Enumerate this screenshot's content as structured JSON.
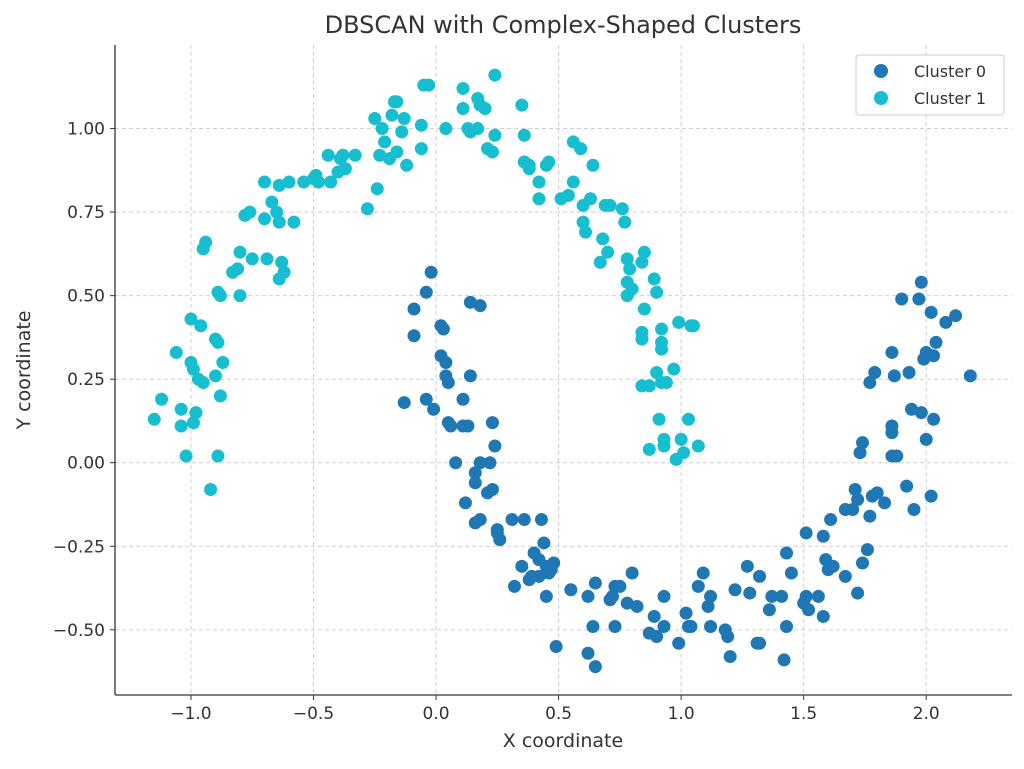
{
  "chart_data": {
    "type": "scatter",
    "title": "DBSCAN with Complex-Shaped Clusters",
    "xlabel": "X coordinate",
    "ylabel": "Y coordinate",
    "xlim": [
      -1.31,
      2.35
    ],
    "ylim": [
      -0.695,
      1.25
    ],
    "xticks": [
      -1.0,
      -0.5,
      0.0,
      0.5,
      1.0,
      1.5,
      2.0
    ],
    "xtick_labels": [
      "−1.0",
      "−0.5",
      "0.0",
      "0.5",
      "1.0",
      "1.5",
      "2.0"
    ],
    "yticks": [
      -0.5,
      -0.25,
      0.0,
      0.25,
      0.5,
      0.75,
      1.0
    ],
    "ytick_labels": [
      "−0.50",
      "−0.25",
      "0.00",
      "0.25",
      "0.50",
      "0.75",
      "1.00"
    ],
    "grid": true,
    "legend_position": "top-right",
    "series": [
      {
        "name": "Cluster 0",
        "color": "#1f77b4",
        "points": [
          [
            -0.13,
            0.18
          ],
          [
            -0.09,
            0.46
          ],
          [
            -0.09,
            0.38
          ],
          [
            -0.04,
            0.19
          ],
          [
            -0.04,
            0.51
          ],
          [
            -0.02,
            0.57
          ],
          [
            -0.01,
            0.16
          ],
          [
            0.02,
            0.41
          ],
          [
            0.02,
            0.32
          ],
          [
            0.03,
            0.4
          ],
          [
            0.04,
            0.26
          ],
          [
            0.04,
            0.3
          ],
          [
            0.05,
            0.24
          ],
          [
            0.05,
            0.12
          ],
          [
            0.06,
            0.11
          ],
          [
            0.08,
            0.0
          ],
          [
            0.11,
            0.11
          ],
          [
            0.11,
            0.19
          ],
          [
            0.13,
            0.11
          ],
          [
            0.12,
            -0.12
          ],
          [
            0.14,
            0.48
          ],
          [
            0.14,
            0.26
          ],
          [
            0.16,
            -0.03
          ],
          [
            0.16,
            -0.18
          ],
          [
            0.16,
            -0.06
          ],
          [
            0.18,
            -0.17
          ],
          [
            0.18,
            0.47
          ],
          [
            0.18,
            0.0
          ],
          [
            0.21,
            -0.09
          ],
          [
            0.22,
            0.0
          ],
          [
            0.23,
            0.12
          ],
          [
            0.23,
            -0.08
          ],
          [
            0.24,
            0.05
          ],
          [
            0.25,
            -0.2
          ],
          [
            0.25,
            -0.21
          ],
          [
            0.26,
            -0.23
          ],
          [
            0.31,
            -0.17
          ],
          [
            0.32,
            -0.37
          ],
          [
            0.35,
            -0.31
          ],
          [
            0.36,
            -0.17
          ],
          [
            0.38,
            -0.35
          ],
          [
            0.39,
            -0.34
          ],
          [
            0.4,
            -0.27
          ],
          [
            0.42,
            -0.34
          ],
          [
            0.42,
            -0.29
          ],
          [
            0.43,
            -0.17
          ],
          [
            0.44,
            -0.24
          ],
          [
            0.45,
            -0.31
          ],
          [
            0.45,
            -0.4
          ],
          [
            0.46,
            -0.33
          ],
          [
            0.47,
            -0.32
          ],
          [
            0.48,
            -0.3
          ],
          [
            0.49,
            -0.55
          ],
          [
            0.55,
            -0.38
          ],
          [
            0.62,
            -0.4
          ],
          [
            0.62,
            -0.57
          ],
          [
            0.64,
            -0.49
          ],
          [
            0.65,
            -0.36
          ],
          [
            0.65,
            -0.61
          ],
          [
            0.71,
            -0.41
          ],
          [
            0.72,
            -0.4
          ],
          [
            0.73,
            -0.37
          ],
          [
            0.73,
            -0.49
          ],
          [
            0.75,
            -0.37
          ],
          [
            0.78,
            -0.42
          ],
          [
            0.8,
            -0.33
          ],
          [
            0.82,
            -0.43
          ],
          [
            0.87,
            -0.51
          ],
          [
            0.89,
            -0.46
          ],
          [
            0.9,
            -0.52
          ],
          [
            0.93,
            -0.49
          ],
          [
            0.93,
            -0.4
          ],
          [
            0.99,
            -0.54
          ],
          [
            1.02,
            -0.45
          ],
          [
            1.03,
            -0.49
          ],
          [
            1.04,
            -0.49
          ],
          [
            1.07,
            -0.37
          ],
          [
            1.09,
            -0.33
          ],
          [
            1.11,
            -0.43
          ],
          [
            1.12,
            -0.49
          ],
          [
            1.12,
            -0.4
          ],
          [
            1.18,
            -0.5
          ],
          [
            1.19,
            -0.52
          ],
          [
            1.2,
            -0.58
          ],
          [
            1.22,
            -0.38
          ],
          [
            1.27,
            -0.31
          ],
          [
            1.28,
            -0.39
          ],
          [
            1.32,
            -0.34
          ],
          [
            1.31,
            -0.54
          ],
          [
            1.32,
            -0.54
          ],
          [
            1.36,
            -0.44
          ],
          [
            1.37,
            -0.4
          ],
          [
            1.41,
            -0.4
          ],
          [
            1.42,
            -0.59
          ],
          [
            1.43,
            -0.49
          ],
          [
            1.43,
            -0.27
          ],
          [
            1.45,
            -0.33
          ],
          [
            1.5,
            -0.42
          ],
          [
            1.51,
            -0.21
          ],
          [
            1.51,
            -0.4
          ],
          [
            1.52,
            -0.44
          ],
          [
            1.56,
            -0.4
          ],
          [
            1.58,
            -0.22
          ],
          [
            1.58,
            -0.46
          ],
          [
            1.59,
            -0.29
          ],
          [
            1.6,
            -0.32
          ],
          [
            1.61,
            -0.17
          ],
          [
            1.62,
            -0.31
          ],
          [
            1.67,
            -0.34
          ],
          [
            1.67,
            -0.14
          ],
          [
            1.7,
            -0.14
          ],
          [
            1.71,
            -0.08
          ],
          [
            1.72,
            -0.11
          ],
          [
            1.72,
            -0.39
          ],
          [
            1.73,
            0.03
          ],
          [
            1.74,
            0.06
          ],
          [
            1.74,
            -0.3
          ],
          [
            1.76,
            -0.26
          ],
          [
            1.77,
            0.24
          ],
          [
            1.77,
            -0.16
          ],
          [
            1.78,
            -0.1
          ],
          [
            1.79,
            0.27
          ],
          [
            1.8,
            -0.09
          ],
          [
            1.83,
            -0.12
          ],
          [
            1.86,
            0.11
          ],
          [
            1.86,
            0.02
          ],
          [
            1.86,
            0.09
          ],
          [
            1.86,
            0.33
          ],
          [
            1.87,
            0.26
          ],
          [
            1.88,
            0.02
          ],
          [
            1.9,
            0.49
          ],
          [
            1.92,
            -0.07
          ],
          [
            1.93,
            0.27
          ],
          [
            1.94,
            0.16
          ],
          [
            1.95,
            -0.14
          ],
          [
            1.97,
            0.49
          ],
          [
            1.98,
            0.54
          ],
          [
            1.98,
            0.15
          ],
          [
            1.99,
            0.31
          ],
          [
            2.0,
            0.33
          ],
          [
            2.0,
            0.07
          ],
          [
            2.02,
            0.45
          ],
          [
            2.02,
            -0.1
          ],
          [
            2.03,
            0.13
          ],
          [
            2.03,
            0.32
          ],
          [
            2.04,
            0.36
          ],
          [
            2.08,
            0.42
          ],
          [
            2.12,
            0.44
          ],
          [
            2.18,
            0.26
          ]
        ]
      },
      {
        "name": "Cluster 1",
        "color": "#17becf",
        "points": [
          [
            -1.15,
            0.13
          ],
          [
            -1.12,
            0.19
          ],
          [
            -1.06,
            0.33
          ],
          [
            -1.04,
            0.16
          ],
          [
            -1.04,
            0.11
          ],
          [
            -1.02,
            0.02
          ],
          [
            -1.0,
            0.43
          ],
          [
            -1.0,
            0.3
          ],
          [
            -0.99,
            0.28
          ],
          [
            -0.99,
            0.12
          ],
          [
            -0.98,
            0.15
          ],
          [
            -0.97,
            0.25
          ],
          [
            -0.95,
            0.24
          ],
          [
            -0.96,
            0.41
          ],
          [
            -0.95,
            0.64
          ],
          [
            -0.94,
            0.66
          ],
          [
            -0.92,
            -0.08
          ],
          [
            -0.9,
            0.26
          ],
          [
            -0.9,
            0.37
          ],
          [
            -0.89,
            0.36
          ],
          [
            -0.89,
            0.02
          ],
          [
            -0.89,
            0.51
          ],
          [
            -0.88,
            0.5
          ],
          [
            -0.88,
            0.2
          ],
          [
            -0.87,
            0.3
          ],
          [
            -0.83,
            0.57
          ],
          [
            -0.81,
            0.58
          ],
          [
            -0.8,
            0.5
          ],
          [
            -0.8,
            0.63
          ],
          [
            -0.78,
            0.74
          ],
          [
            -0.76,
            0.75
          ],
          [
            -0.75,
            0.61
          ],
          [
            -0.7,
            0.84
          ],
          [
            -0.7,
            0.73
          ],
          [
            -0.69,
            0.61
          ],
          [
            -0.67,
            0.78
          ],
          [
            -0.65,
            0.75
          ],
          [
            -0.64,
            0.72
          ],
          [
            -0.64,
            0.83
          ],
          [
            -0.64,
            0.55
          ],
          [
            -0.63,
            0.6
          ],
          [
            -0.62,
            0.57
          ],
          [
            -0.6,
            0.84
          ],
          [
            -0.58,
            0.72
          ],
          [
            -0.54,
            0.84
          ],
          [
            -0.5,
            0.85
          ],
          [
            -0.49,
            0.86
          ],
          [
            -0.48,
            0.84
          ],
          [
            -0.44,
            0.92
          ],
          [
            -0.43,
            0.84
          ],
          [
            -0.4,
            0.87
          ],
          [
            -0.39,
            0.91
          ],
          [
            -0.38,
            0.92
          ],
          [
            -0.37,
            0.88
          ],
          [
            -0.33,
            0.92
          ],
          [
            -0.28,
            0.76
          ],
          [
            -0.24,
            0.82
          ],
          [
            -0.25,
            1.03
          ],
          [
            -0.23,
            0.92
          ],
          [
            -0.22,
            1.0
          ],
          [
            -0.21,
            0.96
          ],
          [
            -0.19,
            0.91
          ],
          [
            -0.18,
            1.04
          ],
          [
            -0.17,
            1.08
          ],
          [
            -0.16,
            1.08
          ],
          [
            -0.16,
            0.93
          ],
          [
            -0.14,
            0.99
          ],
          [
            -0.13,
            1.03
          ],
          [
            -0.12,
            0.89
          ],
          [
            -0.06,
            1.01
          ],
          [
            -0.06,
            0.94
          ],
          [
            -0.05,
            1.13
          ],
          [
            -0.03,
            1.13
          ],
          [
            0.04,
            1.0
          ],
          [
            0.11,
            1.12
          ],
          [
            0.11,
            1.06
          ],
          [
            0.13,
            1.0
          ],
          [
            0.14,
            0.99
          ],
          [
            0.17,
            1.09
          ],
          [
            0.17,
            1.0
          ],
          [
            0.18,
            1.07
          ],
          [
            0.2,
            1.06
          ],
          [
            0.21,
            0.94
          ],
          [
            0.23,
            0.93
          ],
          [
            0.24,
            1.16
          ],
          [
            0.24,
            0.98
          ],
          [
            0.35,
            1.07
          ],
          [
            0.36,
            0.9
          ],
          [
            0.36,
            0.98
          ],
          [
            0.38,
            0.88
          ],
          [
            0.38,
            0.89
          ],
          [
            0.42,
            0.79
          ],
          [
            0.42,
            0.84
          ],
          [
            0.45,
            0.89
          ],
          [
            0.46,
            0.9
          ],
          [
            0.51,
            0.79
          ],
          [
            0.54,
            0.8
          ],
          [
            0.56,
            0.84
          ],
          [
            0.56,
            0.96
          ],
          [
            0.59,
            0.94
          ],
          [
            0.6,
            0.77
          ],
          [
            0.6,
            0.72
          ],
          [
            0.61,
            0.69
          ],
          [
            0.63,
            0.79
          ],
          [
            0.64,
            0.89
          ],
          [
            0.67,
            0.6
          ],
          [
            0.68,
            0.67
          ],
          [
            0.69,
            0.77
          ],
          [
            0.7,
            0.63
          ],
          [
            0.71,
            0.77
          ],
          [
            0.76,
            0.76
          ],
          [
            0.77,
            0.72
          ],
          [
            0.78,
            0.61
          ],
          [
            0.78,
            0.5
          ],
          [
            0.78,
            0.54
          ],
          [
            0.79,
            0.58
          ],
          [
            0.8,
            0.52
          ],
          [
            0.84,
            0.6
          ],
          [
            0.84,
            0.37
          ],
          [
            0.85,
            0.46
          ],
          [
            0.85,
            0.63
          ],
          [
            0.84,
            0.39
          ],
          [
            0.84,
            0.23
          ],
          [
            0.87,
            0.04
          ],
          [
            0.87,
            0.23
          ],
          [
            0.89,
            0.55
          ],
          [
            0.9,
            0.51
          ],
          [
            0.9,
            0.27
          ],
          [
            0.91,
            0.13
          ],
          [
            0.92,
            0.4
          ],
          [
            0.92,
            0.24
          ],
          [
            0.92,
            0.36
          ],
          [
            0.92,
            0.34
          ],
          [
            0.93,
            0.07
          ],
          [
            0.93,
            0.05
          ],
          [
            0.94,
            0.24
          ],
          [
            0.97,
            0.28
          ],
          [
            0.98,
            0.01
          ],
          [
            0.99,
            0.42
          ],
          [
            1.0,
            0.07
          ],
          [
            1.01,
            0.03
          ],
          [
            1.03,
            0.13
          ],
          [
            1.04,
            0.41
          ],
          [
            1.05,
            0.41
          ],
          [
            1.07,
            0.05
          ]
        ]
      }
    ]
  }
}
